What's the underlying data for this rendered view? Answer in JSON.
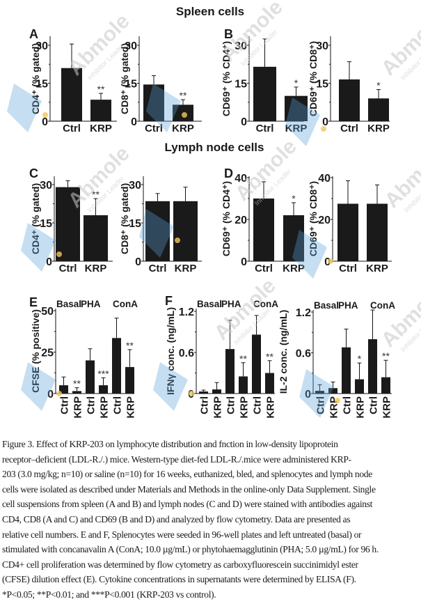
{
  "section_titles": {
    "spleen": "Spleen cells",
    "lymph": "Lymph node cells"
  },
  "colors": {
    "bar": "#1a1a1a",
    "axis": "#111111",
    "watermark_blue": "#5aa0d8",
    "watermark_gray": "#c8c8c8",
    "watermark_dot": "#f3c75a"
  },
  "watermark": {
    "brand": "Abmole",
    "tagline": "Inhibitor Leader"
  },
  "chart_data": [
    {
      "id": "A1",
      "panel_label": "A",
      "type": "bar",
      "title": "",
      "xlabel": "",
      "ylabel": "CD4⁺ (% gated)",
      "categories": [
        "Ctrl",
        "KRP"
      ],
      "values": [
        21,
        8.5
      ],
      "errors": [
        9.5,
        2.5
      ],
      "significance": [
        "",
        "**"
      ],
      "ylim": [
        0,
        30
      ],
      "yticks": [
        0,
        15,
        30
      ],
      "minor_ticks": [
        7.5,
        22.5
      ],
      "group_labels": []
    },
    {
      "id": "A2",
      "panel_label": "",
      "type": "bar",
      "title": "",
      "xlabel": "",
      "ylabel": "CD8⁺ (% gated)",
      "categories": [
        "Ctrl",
        "KRP"
      ],
      "values": [
        14.5,
        6.5
      ],
      "errors": [
        3.5,
        2
      ],
      "significance": [
        "",
        "**"
      ],
      "ylim": [
        0,
        30
      ],
      "yticks": [
        0,
        15,
        30
      ],
      "minor_ticks": [
        7.5,
        22.5
      ],
      "group_labels": []
    },
    {
      "id": "B1",
      "panel_label": "B",
      "type": "bar",
      "title": "",
      "xlabel": "",
      "ylabel": "CD69⁺ (% CD4⁺)",
      "categories": [
        "Ctrl",
        "KRP"
      ],
      "values": [
        21.5,
        10
      ],
      "errors": [
        11,
        3.5
      ],
      "significance": [
        "",
        "*"
      ],
      "ylim": [
        0,
        30
      ],
      "yticks": [
        0,
        15,
        30
      ],
      "minor_ticks": [
        7.5,
        22.5
      ],
      "group_labels": []
    },
    {
      "id": "B2",
      "panel_label": "",
      "type": "bar",
      "title": "",
      "xlabel": "",
      "ylabel": "CD69⁺ (% CD8⁺)",
      "categories": [
        "Ctrl",
        "KRP"
      ],
      "values": [
        16.5,
        9
      ],
      "errors": [
        7,
        3.5
      ],
      "significance": [
        "",
        "*"
      ],
      "ylim": [
        0,
        30
      ],
      "yticks": [
        0,
        15,
        30
      ],
      "minor_ticks": [
        7.5,
        22.5
      ],
      "group_labels": []
    },
    {
      "id": "C1",
      "panel_label": "C",
      "type": "bar",
      "title": "",
      "xlabel": "",
      "ylabel": "CD4⁺ (% gated)",
      "categories": [
        "Ctrl",
        "KRP"
      ],
      "values": [
        29,
        18
      ],
      "errors": [
        2.5,
        6.5
      ],
      "significance": [
        "",
        "**"
      ],
      "ylim": [
        0,
        30
      ],
      "yticks": [
        0,
        15,
        30
      ],
      "minor_ticks": [
        7.5,
        22.5
      ],
      "group_labels": []
    },
    {
      "id": "C2",
      "panel_label": "",
      "type": "bar",
      "title": "",
      "xlabel": "",
      "ylabel": "CD8⁺ (% gated)",
      "categories": [
        "Ctrl",
        "KRP"
      ],
      "values": [
        23.5,
        23.5
      ],
      "errors": [
        3,
        5.5
      ],
      "significance": [
        "",
        ""
      ],
      "ylim": [
        0,
        30
      ],
      "yticks": [
        0,
        15,
        30
      ],
      "minor_ticks": [
        7.5,
        22.5
      ],
      "group_labels": []
    },
    {
      "id": "D1",
      "panel_label": "D",
      "type": "bar",
      "title": "",
      "xlabel": "",
      "ylabel": "CD69⁺ (% CD4⁺)",
      "categories": [
        "Ctrl",
        "KRP"
      ],
      "values": [
        30,
        22
      ],
      "errors": [
        8,
        6
      ],
      "significance": [
        "",
        "*"
      ],
      "ylim": [
        0,
        40
      ],
      "yticks": [
        0,
        20,
        40
      ],
      "minor_ticks": [
        10,
        30
      ],
      "group_labels": []
    },
    {
      "id": "D2",
      "panel_label": "",
      "type": "bar",
      "title": "",
      "xlabel": "",
      "ylabel": "CD69⁺ (% CD8⁺)",
      "categories": [
        "Ctrl",
        "KRP"
      ],
      "values": [
        27.5,
        27.5
      ],
      "errors": [
        11,
        9
      ],
      "significance": [
        "",
        ""
      ],
      "ylim": [
        0,
        40
      ],
      "yticks": [
        0,
        20,
        40
      ],
      "minor_ticks": [
        10,
        30
      ],
      "group_labels": []
    },
    {
      "id": "E",
      "panel_label": "E",
      "type": "bar",
      "title": "",
      "xlabel": "",
      "ylabel": "CFSE (% positive)",
      "categories": [
        "Ctrl",
        "KRP",
        "Ctrl",
        "KRP",
        "Ctrl",
        "KRP"
      ],
      "values": [
        5,
        1.5,
        20,
        5,
        33.5,
        16
      ],
      "errors": [
        5,
        2,
        7,
        4.5,
        12,
        10.5
      ],
      "significance": [
        "",
        "**",
        "",
        "***",
        "",
        "**"
      ],
      "ylim": [
        0,
        50
      ],
      "yticks": [
        0,
        25,
        50
      ],
      "minor_ticks": [
        12.5,
        37.5
      ],
      "group_labels": [
        "Basal",
        "PHA",
        "ConA"
      ]
    },
    {
      "id": "F1",
      "panel_label": "F",
      "type": "bar",
      "title": "",
      "xlabel": "",
      "ylabel": "IFNγ conc. (ng/mL)",
      "categories": [
        "Ctrl",
        "KRP",
        "Ctrl",
        "KRP",
        "Ctrl",
        "KRP"
      ],
      "values": [
        0.03,
        0.06,
        0.65,
        0.25,
        0.86,
        0.3
      ],
      "errors": [
        0.02,
        0.1,
        0.42,
        0.2,
        0.28,
        0.18
      ],
      "significance": [
        "",
        "",
        "",
        "**",
        "",
        "**"
      ],
      "ylim": [
        0,
        1.2
      ],
      "yticks": [
        0,
        0.6,
        1.2
      ],
      "ytick_labels": [
        "0",
        "0.6",
        "1.2"
      ],
      "minor_ticks": [
        0.3,
        0.9
      ],
      "group_labels": [
        "Basal",
        "PHA",
        "ConA"
      ]
    },
    {
      "id": "F2",
      "panel_label": "",
      "type": "bar",
      "title": "",
      "xlabel": "",
      "ylabel": "IL-2 conc. (ng/mL)",
      "categories": [
        "Ctrl",
        "KRP",
        "Ctrl",
        "KRP",
        "Ctrl",
        "KRP"
      ],
      "values": [
        0.04,
        0.08,
        0.68,
        0.21,
        0.8,
        0.24
      ],
      "errors": [
        0.09,
        0.09,
        0.27,
        0.24,
        0.43,
        0.25
      ],
      "significance": [
        "",
        "",
        "",
        "*",
        "",
        "**"
      ],
      "ylim": [
        0,
        1.2
      ],
      "yticks": [
        0,
        0.6,
        1.2
      ],
      "ytick_labels": [
        "0",
        "0.6",
        "1.2"
      ],
      "minor_ticks": [
        0.3,
        0.9
      ],
      "group_labels": [
        "Basal",
        "PHA",
        "ConA"
      ]
    }
  ],
  "caption": {
    "lines": [
      "Figure 3. Effect of KRP-203 on lymphocyte distribution and fnction in low-density lipoprotein",
      "receptor–deficient (LDL-R./.) mice. Western-type diet-fed LDL-R./.mice were administered KRP-",
      "203 (3.0 mg/kg; n=10) or saline (n=10) for 16 weeks, euthanized, bled, and splenocytes and lymph node",
      "cells were isolated as described under Materials and Methods in the online-only Data Supplement. Single",
      "cell suspensions from spleen (A and B) and lymph nodes (C and D) were stained with antibodies against",
      "CD4, CD8 (A and C) and CD69 (B and D) and analyzed by flow cytometry. Data are presented as",
      "relative cell numbers. E and F, Splenocytes were seeded in 96-well plates and left untreated (basal) or",
      "stimulated with concanavalin A (ConA; 10.0 µg/mL) or phytohaemagglutinin (PHA; 5.0 µg/mL) for 96 h.",
      "CD4+ cell proliferation was determined by flow cytometry as carboxyfluorescein succinimidyl ester",
      "(CFSE) dilution effect (E). Cytokine concentrations in supernatants were determined by ELISA (F).",
      "*P<0.05; **P<0.01; and ***P<0.001 (KRP-203 vs control)."
    ]
  }
}
